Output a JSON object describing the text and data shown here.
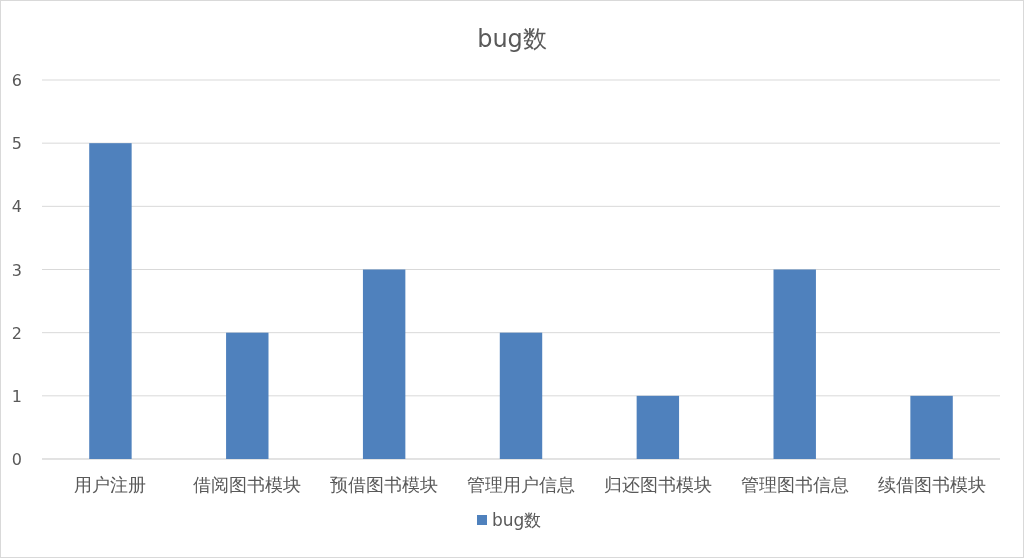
{
  "chart_data": {
    "type": "bar",
    "title": "bug数",
    "categories": [
      "用户注册",
      "借阅图书模块",
      "预借图书模块",
      "管理用户信息",
      "归还图书模块",
      "管理图书信息",
      "续借图书模块"
    ],
    "series": [
      {
        "name": "bug数",
        "color": "#4f81bd",
        "values": [
          5,
          2,
          3,
          2,
          1,
          3,
          1
        ]
      }
    ],
    "ylim": [
      0,
      6
    ],
    "yticks": [
      0,
      1,
      2,
      3,
      4,
      5,
      6
    ],
    "grid": "y",
    "legend": "bottom"
  }
}
